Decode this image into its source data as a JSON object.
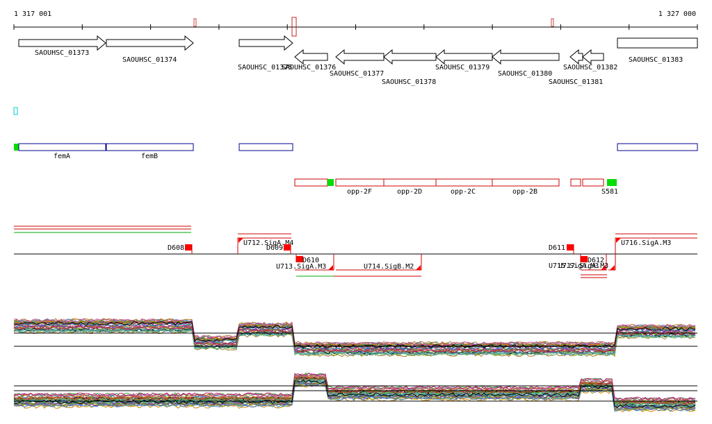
{
  "coordinates": {
    "start_label": "1 317 001",
    "end_label": "1 327 000"
  },
  "colors": {
    "axis": "#000000",
    "gene_arrow": "#000000",
    "annotation_blue": "#00008b",
    "annotation_red": "#cc0000",
    "green_mark": "#00dd00",
    "cyan_mark": "#00cccc",
    "marker_red": "#ff0000"
  },
  "genes": [
    {
      "label": "SAOUHSC_01373",
      "strand": "+"
    },
    {
      "label": "SAOUHSC_01374",
      "strand": "+"
    },
    {
      "label": "SAOUHSC_01375",
      "strand": "+"
    },
    {
      "label": "SAOUHSC_01376",
      "strand": "-"
    },
    {
      "label": "SAOUHSC_01377",
      "strand": "-"
    },
    {
      "label": "SAOUHSC_01378",
      "strand": "-"
    },
    {
      "label": "SAOUHSC_01379",
      "strand": "-"
    },
    {
      "label": "SAOUHSC_01380",
      "strand": "-"
    },
    {
      "label": "SAOUHSC_01381",
      "strand": "-"
    },
    {
      "label": "SAOUHSC_01382",
      "strand": "-"
    },
    {
      "label": "SAOUHSC_01383",
      "strand": "+"
    }
  ],
  "forward_annotations": [
    {
      "label": "femA"
    },
    {
      "label": "femB"
    },
    {
      "label": ""
    },
    {
      "label": ""
    }
  ],
  "reverse_annotations": [
    {
      "label": ""
    },
    {
      "label": "opp-2F"
    },
    {
      "label": "opp-2D"
    },
    {
      "label": "opp-2C"
    },
    {
      "label": "opp-2B"
    },
    {
      "label": ""
    },
    {
      "label": ""
    },
    {
      "label": "S581"
    }
  ],
  "features": [
    {
      "label": "D608"
    },
    {
      "label": "U712.SigA.M4"
    },
    {
      "label": "D609"
    },
    {
      "label": "D610"
    },
    {
      "label": "U713.SigA.M3"
    },
    {
      "label": "U714.SigB.M2"
    },
    {
      "label": "D611"
    },
    {
      "label": "U715.SigA.M3"
    },
    {
      "label": "U717.SigA.M3"
    },
    {
      "label": "D612"
    },
    {
      "label": "U716.SigA.M3"
    }
  ]
}
